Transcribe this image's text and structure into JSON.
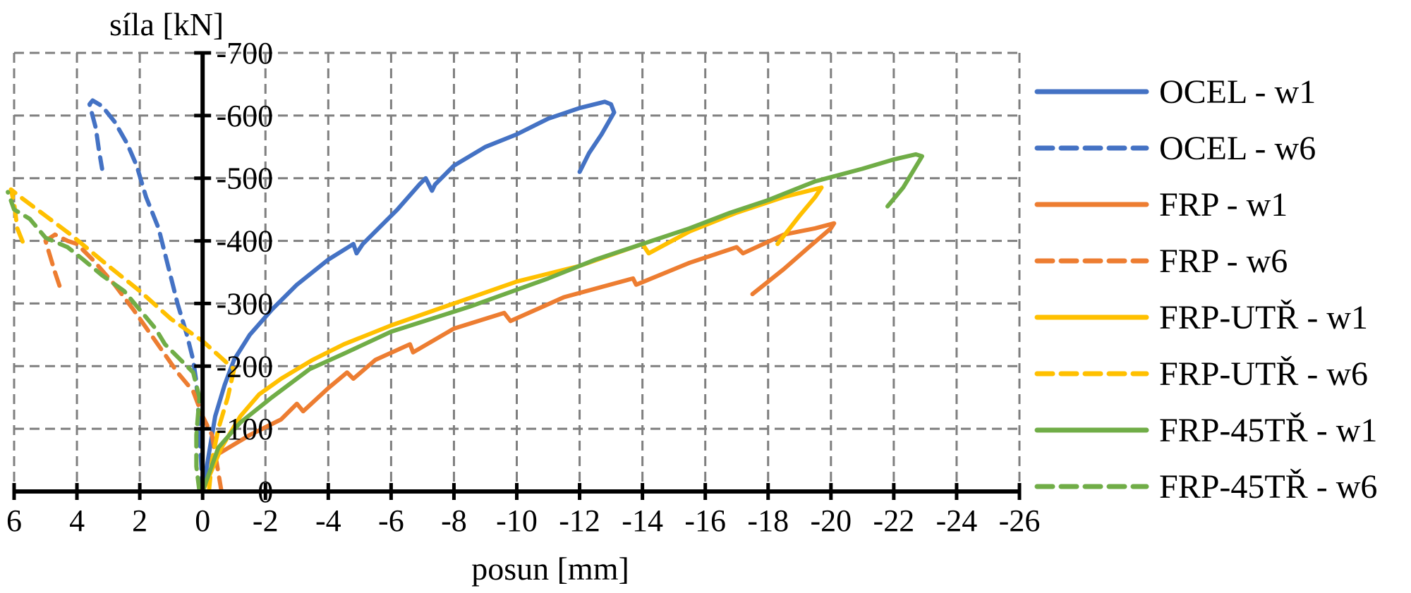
{
  "chart_data": {
    "type": "line",
    "title": "",
    "xlabel": "posun [mm]",
    "ylabel": "síla [kN]",
    "xlim": [
      6,
      -26
    ],
    "ylim": [
      0,
      -700
    ],
    "x_ticks": [
      6,
      4,
      2,
      0,
      -2,
      -4,
      -6,
      -8,
      -10,
      -12,
      -14,
      -16,
      -18,
      -20,
      -22,
      -24,
      -26
    ],
    "x_tick_labels": [
      "6",
      "4",
      "2",
      "0",
      "-2",
      "-4",
      "-6",
      "-8",
      "-10",
      "-12",
      "-14",
      "-16",
      "-18",
      "-20",
      "-22",
      "-24",
      "-26"
    ],
    "y_ticks": [
      0,
      -100,
      -200,
      -300,
      -400,
      -500,
      -600,
      -700
    ],
    "y_tick_labels": [
      "0",
      "-100",
      "-200",
      "-300",
      "-400",
      "-500",
      "-600",
      "-700"
    ],
    "grid": true,
    "legend_position": "right",
    "series": [
      {
        "name": "OCEL - w1",
        "color": "#4472C4",
        "dash": "solid",
        "points": [
          [
            0,
            0
          ],
          [
            -0.2,
            -60
          ],
          [
            -0.4,
            -120
          ],
          [
            -0.7,
            -170
          ],
          [
            -1.0,
            -210
          ],
          [
            -1.5,
            -250
          ],
          [
            -2.2,
            -290
          ],
          [
            -3.0,
            -330
          ],
          [
            -4.0,
            -370
          ],
          [
            -4.8,
            -395
          ],
          [
            -4.9,
            -380
          ],
          [
            -5.1,
            -395
          ],
          [
            -5.6,
            -420
          ],
          [
            -6.2,
            -450
          ],
          [
            -6.9,
            -490
          ],
          [
            -7.1,
            -500
          ],
          [
            -7.3,
            -480
          ],
          [
            -7.4,
            -490
          ],
          [
            -8.0,
            -520
          ],
          [
            -9.0,
            -550
          ],
          [
            -10.0,
            -570
          ],
          [
            -11.0,
            -595
          ],
          [
            -12.0,
            -612
          ],
          [
            -12.8,
            -622
          ],
          [
            -13.0,
            -618
          ],
          [
            -13.1,
            -605
          ],
          [
            -12.7,
            -570
          ],
          [
            -12.3,
            -540
          ],
          [
            -12.0,
            -510
          ]
        ]
      },
      {
        "name": "OCEL - w6",
        "color": "#4472C4",
        "dash": "dashed",
        "points": [
          [
            0,
            0
          ],
          [
            0.1,
            -100
          ],
          [
            0.2,
            -175
          ],
          [
            0.3,
            -210
          ],
          [
            0.5,
            -250
          ],
          [
            0.8,
            -300
          ],
          [
            1.1,
            -360
          ],
          [
            1.4,
            -420
          ],
          [
            1.8,
            -470
          ],
          [
            2.1,
            -520
          ],
          [
            2.4,
            -555
          ],
          [
            2.8,
            -590
          ],
          [
            3.2,
            -615
          ],
          [
            3.5,
            -624
          ],
          [
            3.6,
            -618
          ],
          [
            3.4,
            -580
          ],
          [
            3.3,
            -545
          ],
          [
            3.2,
            -515
          ]
        ]
      },
      {
        "name": "FRP - w1",
        "color": "#ED7D31",
        "dash": "solid",
        "points": [
          [
            0,
            0
          ],
          [
            -0.5,
            -60
          ],
          [
            -1.5,
            -90
          ],
          [
            -2.5,
            -115
          ],
          [
            -3.0,
            -140
          ],
          [
            -3.2,
            -128
          ],
          [
            -4.0,
            -165
          ],
          [
            -4.6,
            -190
          ],
          [
            -4.8,
            -180
          ],
          [
            -5.5,
            -210
          ],
          [
            -6.6,
            -235
          ],
          [
            -6.7,
            -222
          ],
          [
            -8.0,
            -260
          ],
          [
            -9.6,
            -285
          ],
          [
            -9.8,
            -272
          ],
          [
            -11.5,
            -310
          ],
          [
            -13.7,
            -340
          ],
          [
            -13.8,
            -330
          ],
          [
            -15.5,
            -365
          ],
          [
            -17.0,
            -390
          ],
          [
            -17.2,
            -380
          ],
          [
            -18.5,
            -410
          ],
          [
            -19.5,
            -420
          ],
          [
            -20.1,
            -428
          ],
          [
            -20.0,
            -420
          ],
          [
            -19.3,
            -390
          ],
          [
            -18.5,
            -355
          ],
          [
            -17.5,
            -315
          ]
        ]
      },
      {
        "name": "FRP - w6",
        "color": "#ED7D31",
        "dash": "dashed",
        "points": [
          [
            -0.6,
            0
          ],
          [
            -0.5,
            -30
          ],
          [
            -0.4,
            -60
          ],
          [
            -0.3,
            -90
          ],
          [
            0.0,
            -120
          ],
          [
            0.3,
            -160
          ],
          [
            0.8,
            -190
          ],
          [
            1.5,
            -240
          ],
          [
            2.2,
            -290
          ],
          [
            2.8,
            -330
          ],
          [
            3.5,
            -370
          ],
          [
            4.0,
            -395
          ],
          [
            4.3,
            -400
          ],
          [
            4.7,
            -410
          ],
          [
            5.0,
            -400
          ],
          [
            4.7,
            -350
          ],
          [
            4.5,
            -320
          ]
        ]
      },
      {
        "name": "FRP-UTŘ - w1",
        "color": "#FFC000",
        "dash": "solid",
        "points": [
          [
            0,
            0
          ],
          [
            -0.6,
            -70
          ],
          [
            -1.2,
            -120
          ],
          [
            -1.8,
            -155
          ],
          [
            -2.5,
            -180
          ],
          [
            -3.5,
            -210
          ],
          [
            -4.5,
            -235
          ],
          [
            -6.0,
            -265
          ],
          [
            -8.0,
            -300
          ],
          [
            -10.0,
            -335
          ],
          [
            -12.0,
            -360
          ],
          [
            -14.0,
            -395
          ],
          [
            -14.2,
            -380
          ],
          [
            -15.5,
            -415
          ],
          [
            -17.0,
            -445
          ],
          [
            -18.5,
            -470
          ],
          [
            -19.7,
            -485
          ],
          [
            -19.5,
            -470
          ],
          [
            -19.0,
            -440
          ],
          [
            -18.3,
            -395
          ]
        ]
      },
      {
        "name": "FRP-UTŘ - w6",
        "color": "#FFC000",
        "dash": "dashed",
        "points": [
          [
            -0.2,
            0
          ],
          [
            -0.3,
            -50
          ],
          [
            -0.5,
            -100
          ],
          [
            -0.8,
            -150
          ],
          [
            -1.0,
            -195
          ],
          [
            0.0,
            -240
          ],
          [
            1.0,
            -275
          ],
          [
            2.0,
            -320
          ],
          [
            3.0,
            -360
          ],
          [
            4.2,
            -410
          ],
          [
            5.0,
            -440
          ],
          [
            5.8,
            -470
          ],
          [
            6.1,
            -482
          ],
          [
            6.0,
            -460
          ],
          [
            5.9,
            -420
          ],
          [
            5.7,
            -395
          ]
        ]
      },
      {
        "name": "FRP-45TŘ - w1",
        "color": "#70AD47",
        "dash": "solid",
        "points": [
          [
            0,
            0
          ],
          [
            -0.5,
            -70
          ],
          [
            -1.2,
            -110
          ],
          [
            -2.2,
            -150
          ],
          [
            -3.4,
            -195
          ],
          [
            -4.5,
            -220
          ],
          [
            -6.0,
            -255
          ],
          [
            -8.5,
            -295
          ],
          [
            -11.0,
            -340
          ],
          [
            -12.5,
            -370
          ],
          [
            -14.0,
            -395
          ],
          [
            -15.5,
            -420
          ],
          [
            -16.8,
            -445
          ],
          [
            -18.0,
            -465
          ],
          [
            -19.5,
            -495
          ],
          [
            -21.0,
            -515
          ],
          [
            -22.0,
            -530
          ],
          [
            -22.7,
            -538
          ],
          [
            -22.9,
            -535
          ],
          [
            -22.6,
            -510
          ],
          [
            -22.3,
            -485
          ],
          [
            -21.8,
            -455
          ]
        ]
      },
      {
        "name": "FRP-45TŘ - w6",
        "color": "#70AD47",
        "dash": "dashed",
        "points": [
          [
            0.1,
            0
          ],
          [
            0.2,
            -40
          ],
          [
            0.2,
            -90
          ],
          [
            0.1,
            -150
          ],
          [
            0.3,
            -190
          ],
          [
            1.2,
            -235
          ],
          [
            1.5,
            -260
          ],
          [
            2.0,
            -290
          ],
          [
            2.5,
            -320
          ],
          [
            3.2,
            -345
          ],
          [
            3.8,
            -370
          ],
          [
            4.3,
            -390
          ],
          [
            5.0,
            -405
          ],
          [
            5.5,
            -435
          ],
          [
            6.0,
            -450
          ],
          [
            6.2,
            -478
          ]
        ]
      }
    ]
  }
}
